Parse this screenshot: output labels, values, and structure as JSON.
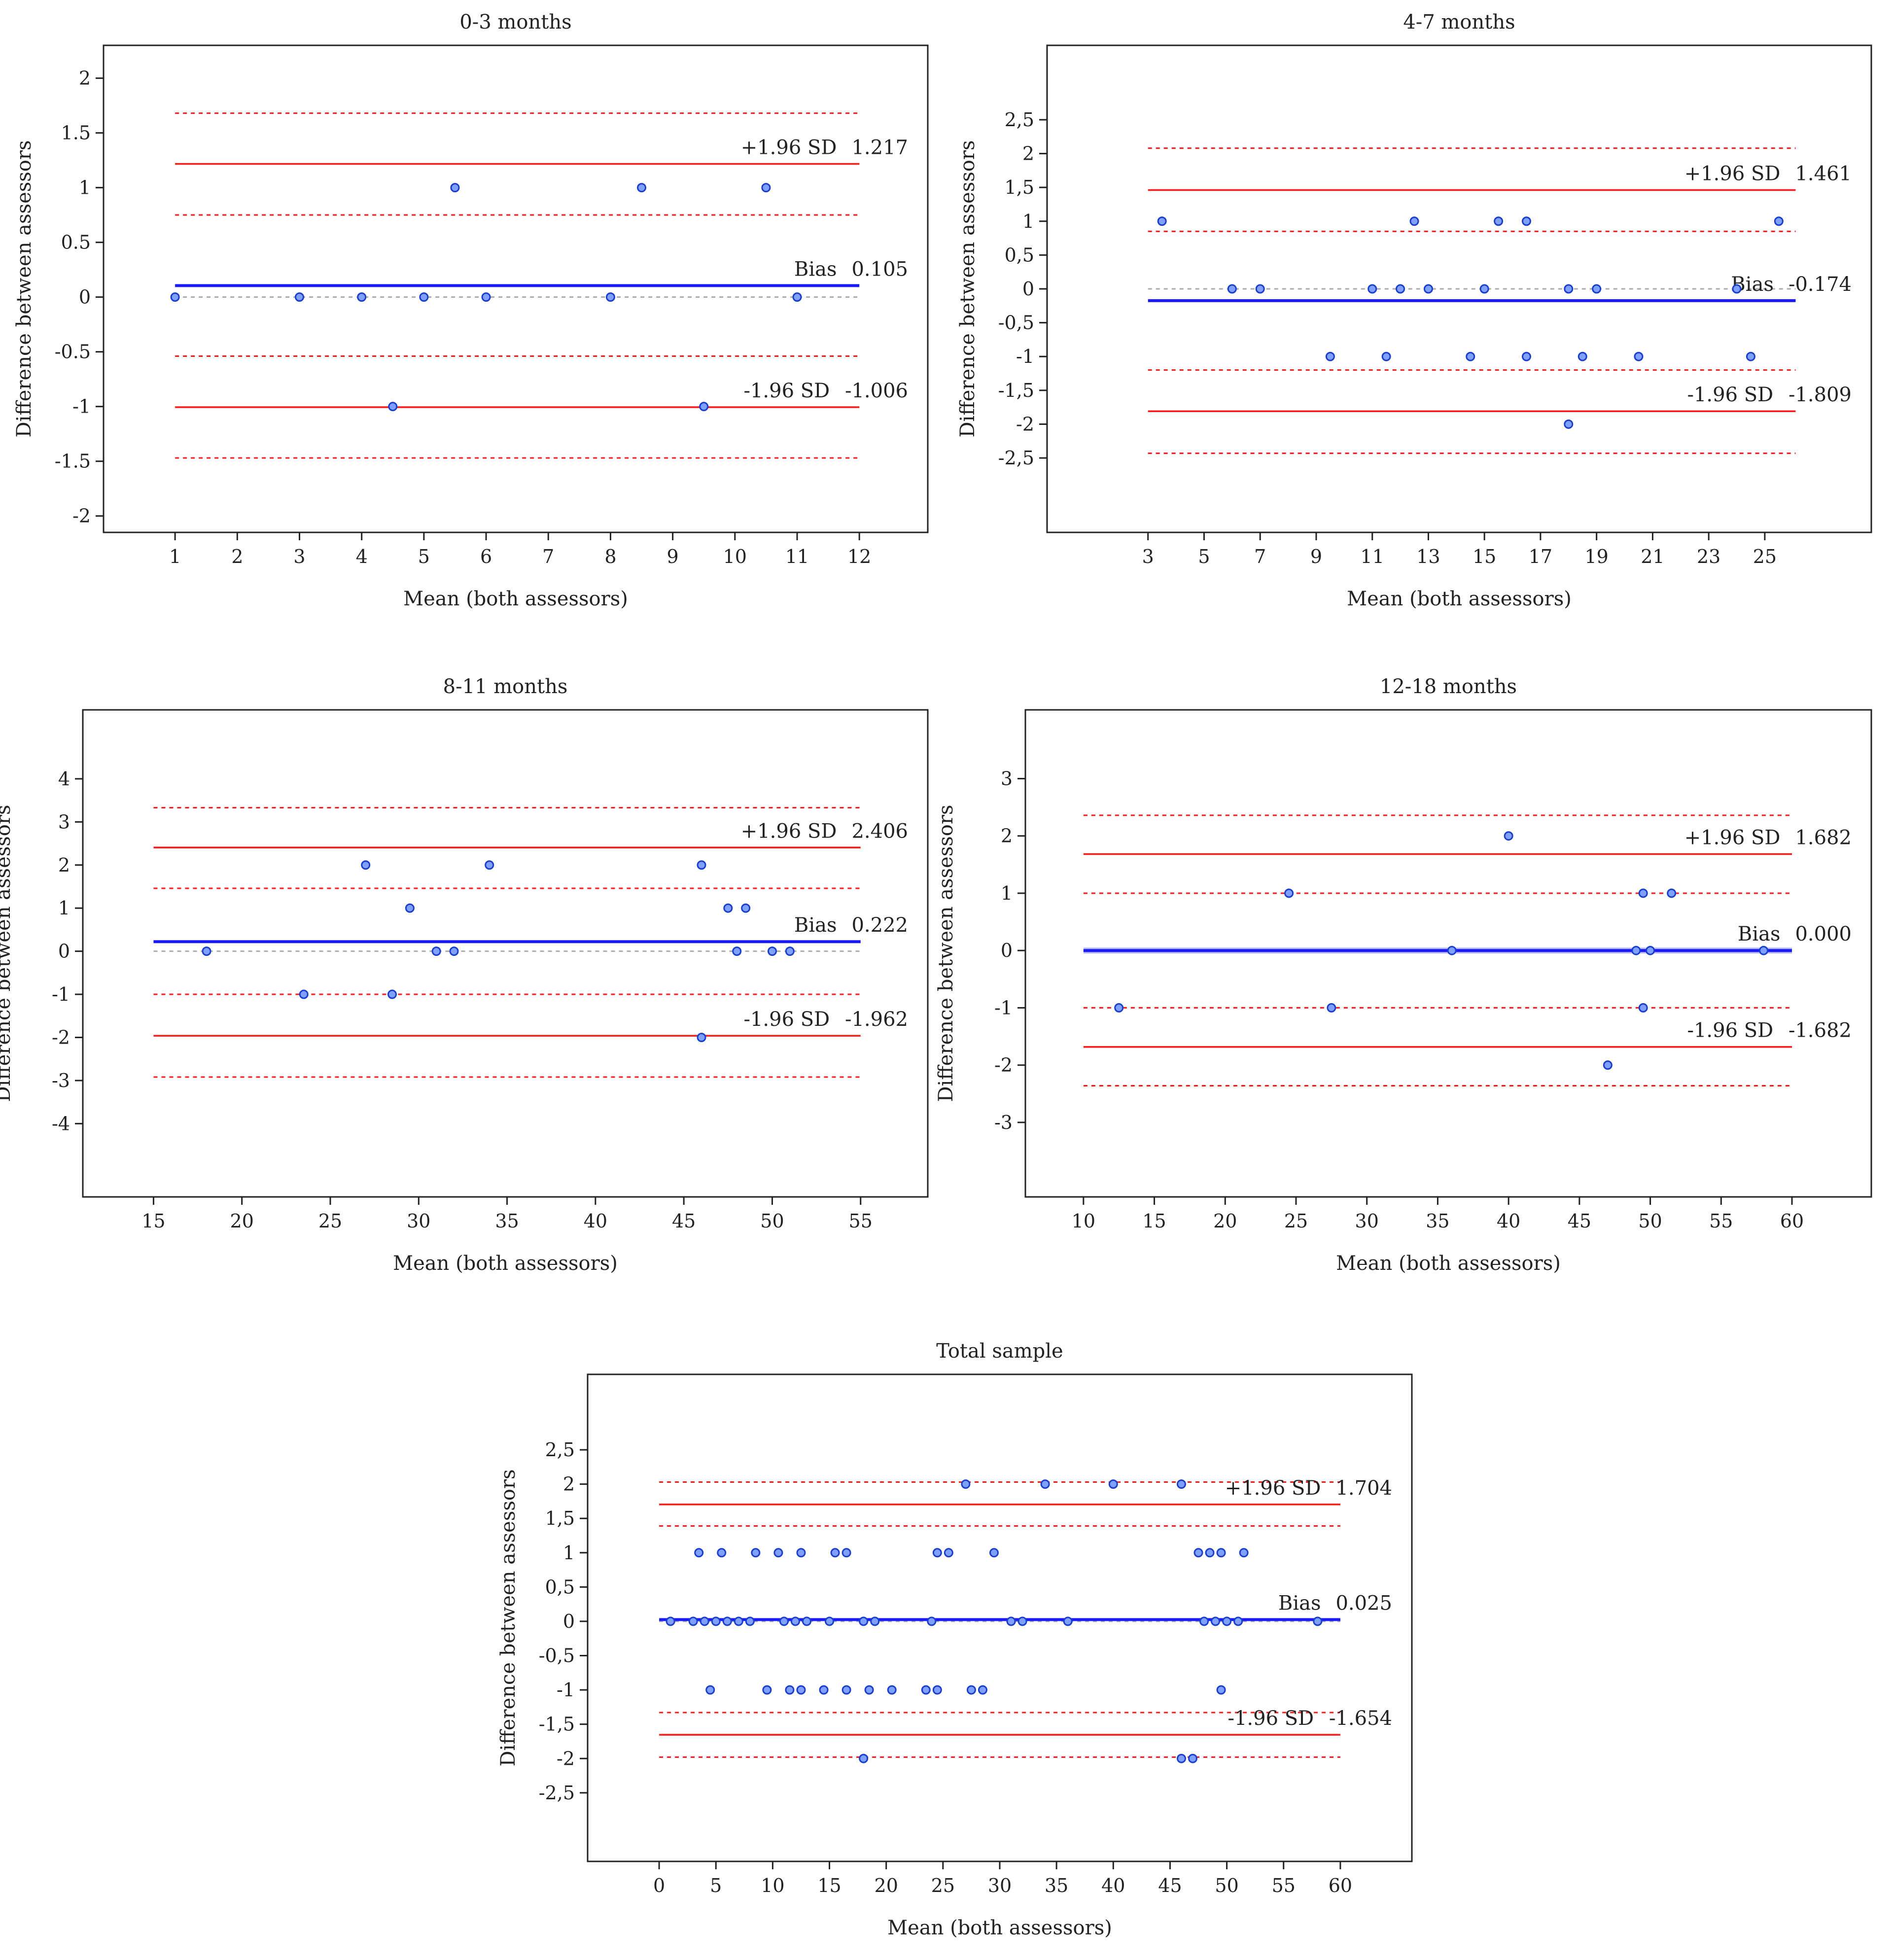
{
  "chart_data": [
    {
      "type": "scatter",
      "title": "0-3 months",
      "xlabel": "Mean (both assessors)",
      "ylabel": "Difference between assessors",
      "xlim": [
        -0.15,
        13.1
      ],
      "ylim": [
        -2.15,
        2.3
      ],
      "xticks": [
        1,
        2,
        3,
        4,
        5,
        6,
        7,
        8,
        9,
        10,
        11,
        12
      ],
      "xtick_labels": [
        "1",
        "2",
        "3",
        "4",
        "5",
        "6",
        "7",
        "8",
        "9",
        "10",
        "11",
        "12"
      ],
      "yticks": [
        2,
        1.5,
        1,
        0.5,
        0,
        -0.5,
        -1,
        -1.5,
        -2
      ],
      "ytick_labels": [
        "2",
        "1.5",
        "1",
        "0.5",
        "0",
        "-0.5",
        "-1",
        "-1.5",
        "-2"
      ],
      "line_x_range": [
        1,
        12
      ],
      "bias": 0.105,
      "upper_loa": 1.217,
      "lower_loa": -1.006,
      "upper_loa_ci": [
        0.75,
        1.68
      ],
      "lower_loa_ci": [
        -1.47,
        -0.54
      ],
      "bias_label": "Bias",
      "bias_value": "0.105",
      "upper_label": "+1.96 SD",
      "upper_value": "1.217",
      "lower_label": "-1.96 SD",
      "lower_value": "-1.006",
      "points": [
        [
          1,
          0
        ],
        [
          3,
          0
        ],
        [
          4,
          0
        ],
        [
          4.5,
          -1
        ],
        [
          5,
          0
        ],
        [
          5.5,
          1
        ],
        [
          6,
          0
        ],
        [
          8,
          0
        ],
        [
          8.5,
          1
        ],
        [
          9.5,
          -1
        ],
        [
          10.5,
          1
        ],
        [
          11,
          0
        ]
      ]
    },
    {
      "type": "scatter",
      "title": "4-7 months",
      "xlabel": "Mean (both assessors)",
      "ylabel": "Difference between assessors",
      "xlim": [
        -0.6,
        28.8
      ],
      "ylim": [
        -3.6,
        3.6
      ],
      "xticks": [
        3,
        5,
        7,
        9,
        11,
        13,
        15,
        17,
        19,
        21,
        23,
        25
      ],
      "xtick_labels": [
        "3",
        "5",
        "7",
        "9",
        "11",
        "13",
        "15",
        "17",
        "19",
        "21",
        "23",
        "25"
      ],
      "yticks": [
        2.5,
        2,
        1.5,
        1,
        0.5,
        0,
        -0.5,
        -1,
        -1.5,
        -2,
        -2.5
      ],
      "ytick_labels": [
        "2,5",
        "2",
        "1,5",
        "1",
        "0,5",
        "0",
        "-0,5",
        "-1",
        "-1,5",
        "-2",
        "-2,5"
      ],
      "line_x_range": [
        3,
        26.1
      ],
      "bias": -0.174,
      "upper_loa": 1.461,
      "lower_loa": -1.809,
      "upper_loa_ci": [
        0.85,
        2.08
      ],
      "lower_loa_ci": [
        -1.2,
        -2.43
      ],
      "bias_label": "Bias",
      "bias_value": "-0.174",
      "upper_label": "+1.96 SD",
      "upper_value": "1.461",
      "lower_label": "-1.96 SD",
      "lower_value": "-1.809",
      "points": [
        [
          3.5,
          1
        ],
        [
          6,
          0
        ],
        [
          7,
          0
        ],
        [
          9.5,
          -1
        ],
        [
          11,
          0
        ],
        [
          11.5,
          -1
        ],
        [
          12,
          0
        ],
        [
          12.5,
          1
        ],
        [
          13,
          0
        ],
        [
          14.5,
          -1
        ],
        [
          15,
          0
        ],
        [
          15.5,
          1
        ],
        [
          16.5,
          1
        ],
        [
          16.5,
          -1
        ],
        [
          18,
          0
        ],
        [
          18,
          -2
        ],
        [
          18.5,
          -1
        ],
        [
          19,
          0
        ],
        [
          20.5,
          -1
        ],
        [
          24,
          0
        ],
        [
          24.5,
          -1
        ],
        [
          25.5,
          1
        ]
      ]
    },
    {
      "type": "scatter",
      "title": "8-11 months",
      "xlabel": "Mean (both assessors)",
      "ylabel": "Difference between assessors",
      "xlim": [
        11,
        58.8
      ],
      "ylim": [
        -5.7,
        5.6
      ],
      "xticks": [
        15,
        20,
        25,
        30,
        35,
        40,
        45,
        50,
        55
      ],
      "xtick_labels": [
        "15",
        "20",
        "25",
        "30",
        "35",
        "40",
        "45",
        "50",
        "55"
      ],
      "yticks": [
        4,
        3,
        2,
        1,
        0,
        -1,
        -2,
        -3,
        -4
      ],
      "ytick_labels": [
        "4",
        "3",
        "2",
        "1",
        "0",
        "-1",
        "-2",
        "-3",
        "-4"
      ],
      "line_x_range": [
        15,
        55
      ],
      "bias": 0.222,
      "upper_loa": 2.406,
      "lower_loa": -1.962,
      "upper_loa_ci": [
        1.46,
        3.33
      ],
      "lower_loa_ci": [
        -1.0,
        -2.92
      ],
      "bias_label": "Bias",
      "bias_value": "0.222",
      "upper_label": "+1.96 SD",
      "upper_value": "2.406",
      "lower_label": "-1.96 SD",
      "lower_value": "-1.962",
      "points": [
        [
          18,
          0
        ],
        [
          23.5,
          -1
        ],
        [
          27,
          2
        ],
        [
          28.5,
          -1
        ],
        [
          29.5,
          1
        ],
        [
          31,
          0
        ],
        [
          32,
          0
        ],
        [
          34,
          2
        ],
        [
          46,
          2
        ],
        [
          46,
          -2
        ],
        [
          47.5,
          1
        ],
        [
          48,
          0
        ],
        [
          48.5,
          1
        ],
        [
          50,
          0
        ],
        [
          51,
          0
        ]
      ]
    },
    {
      "type": "scatter",
      "title": "12-18 months",
      "xlabel": "Mean (both assessors)",
      "ylabel": "Difference between assessors",
      "xlim": [
        5.9,
        65.6
      ],
      "ylim": [
        -4.3,
        4.2
      ],
      "xticks": [
        10,
        15,
        20,
        25,
        30,
        35,
        40,
        45,
        50,
        55,
        60
      ],
      "xtick_labels": [
        "10",
        "15",
        "20",
        "25",
        "30",
        "35",
        "40",
        "45",
        "50",
        "55",
        "60"
      ],
      "yticks": [
        3,
        2,
        1,
        0,
        -1,
        -2,
        -3
      ],
      "ytick_labels": [
        "3",
        "2",
        "1",
        "0",
        "-1",
        "-2",
        "-3"
      ],
      "line_x_range": [
        10,
        60
      ],
      "bias": 0.0,
      "upper_loa": 1.682,
      "lower_loa": -1.682,
      "upper_loa_ci": [
        1.0,
        2.36
      ],
      "lower_loa_ci": [
        -1.0,
        -2.36
      ],
      "bias_label": "Bias",
      "bias_value": "0.000",
      "upper_label": "+1.96 SD",
      "upper_value": "1.682",
      "lower_label": "-1.96 SD",
      "lower_value": "-1.682",
      "points": [
        [
          12.5,
          -1
        ],
        [
          24.5,
          1
        ],
        [
          27.5,
          -1
        ],
        [
          36,
          0
        ],
        [
          40,
          2
        ],
        [
          47,
          -2
        ],
        [
          49,
          0
        ],
        [
          49.5,
          1
        ],
        [
          49.5,
          -1
        ],
        [
          50,
          0
        ],
        [
          51.5,
          1
        ],
        [
          58,
          0
        ]
      ]
    },
    {
      "type": "scatter",
      "title": "Total sample",
      "xlabel": "Mean (both assessors)",
      "ylabel": "Difference between assessors",
      "xlim": [
        -6.3,
        66.3
      ],
      "ylim": [
        -3.5,
        3.6
      ],
      "xticks": [
        0,
        5,
        10,
        15,
        20,
        25,
        30,
        35,
        40,
        45,
        50,
        55,
        60
      ],
      "xtick_labels": [
        "0",
        "5",
        "10",
        "15",
        "20",
        "25",
        "30",
        "35",
        "40",
        "45",
        "50",
        "55",
        "60"
      ],
      "yticks": [
        2.5,
        2,
        1.5,
        1,
        0.5,
        0,
        -0.5,
        -1,
        -1.5,
        -2,
        -2.5
      ],
      "ytick_labels": [
        "2,5",
        "2",
        "1,5",
        "1",
        "0,5",
        "0",
        "-0,5",
        "-1",
        "-1,5",
        "-2",
        "-2,5"
      ],
      "line_x_range": [
        0,
        60
      ],
      "bias": 0.025,
      "upper_loa": 1.704,
      "lower_loa": -1.654,
      "upper_loa_ci": [
        1.39,
        2.03
      ],
      "lower_loa_ci": [
        -1.33,
        -1.98
      ],
      "bias_label": "Bias",
      "bias_value": "0.025",
      "upper_label": "+1.96 SD",
      "upper_value": "1.704",
      "lower_label": "-1.96 SD",
      "lower_value": "-1.654",
      "points": [
        [
          1,
          0
        ],
        [
          3,
          0
        ],
        [
          3.5,
          1
        ],
        [
          4,
          0
        ],
        [
          4.5,
          -1
        ],
        [
          5,
          0
        ],
        [
          5.5,
          1
        ],
        [
          6,
          0
        ],
        [
          7,
          0
        ],
        [
          8,
          0
        ],
        [
          8.5,
          1
        ],
        [
          9.5,
          -1
        ],
        [
          10.5,
          1
        ],
        [
          11,
          0
        ],
        [
          11.5,
          -1
        ],
        [
          12,
          0
        ],
        [
          12.5,
          1
        ],
        [
          12.5,
          -1
        ],
        [
          13,
          0
        ],
        [
          14.5,
          -1
        ],
        [
          15,
          0
        ],
        [
          15.5,
          1
        ],
        [
          16.5,
          1
        ],
        [
          16.5,
          -1
        ],
        [
          18,
          0
        ],
        [
          18,
          -2
        ],
        [
          18.5,
          -1
        ],
        [
          19,
          0
        ],
        [
          20.5,
          -1
        ],
        [
          23.5,
          -1
        ],
        [
          24,
          0
        ],
        [
          24.5,
          1
        ],
        [
          25.5,
          1
        ],
        [
          24.5,
          -1
        ],
        [
          27,
          2
        ],
        [
          27.5,
          -1
        ],
        [
          28.5,
          -1
        ],
        [
          29.5,
          1
        ],
        [
          31,
          0
        ],
        [
          32,
          0
        ],
        [
          34,
          2
        ],
        [
          36,
          0
        ],
        [
          40,
          2
        ],
        [
          46,
          2
        ],
        [
          46,
          -2
        ],
        [
          47,
          -2
        ],
        [
          47.5,
          1
        ],
        [
          48,
          0
        ],
        [
          48.5,
          1
        ],
        [
          49,
          0
        ],
        [
          49.5,
          1
        ],
        [
          49.5,
          -1
        ],
        [
          50,
          0
        ],
        [
          51,
          0
        ],
        [
          51.5,
          1
        ],
        [
          58,
          0
        ]
      ]
    }
  ]
}
